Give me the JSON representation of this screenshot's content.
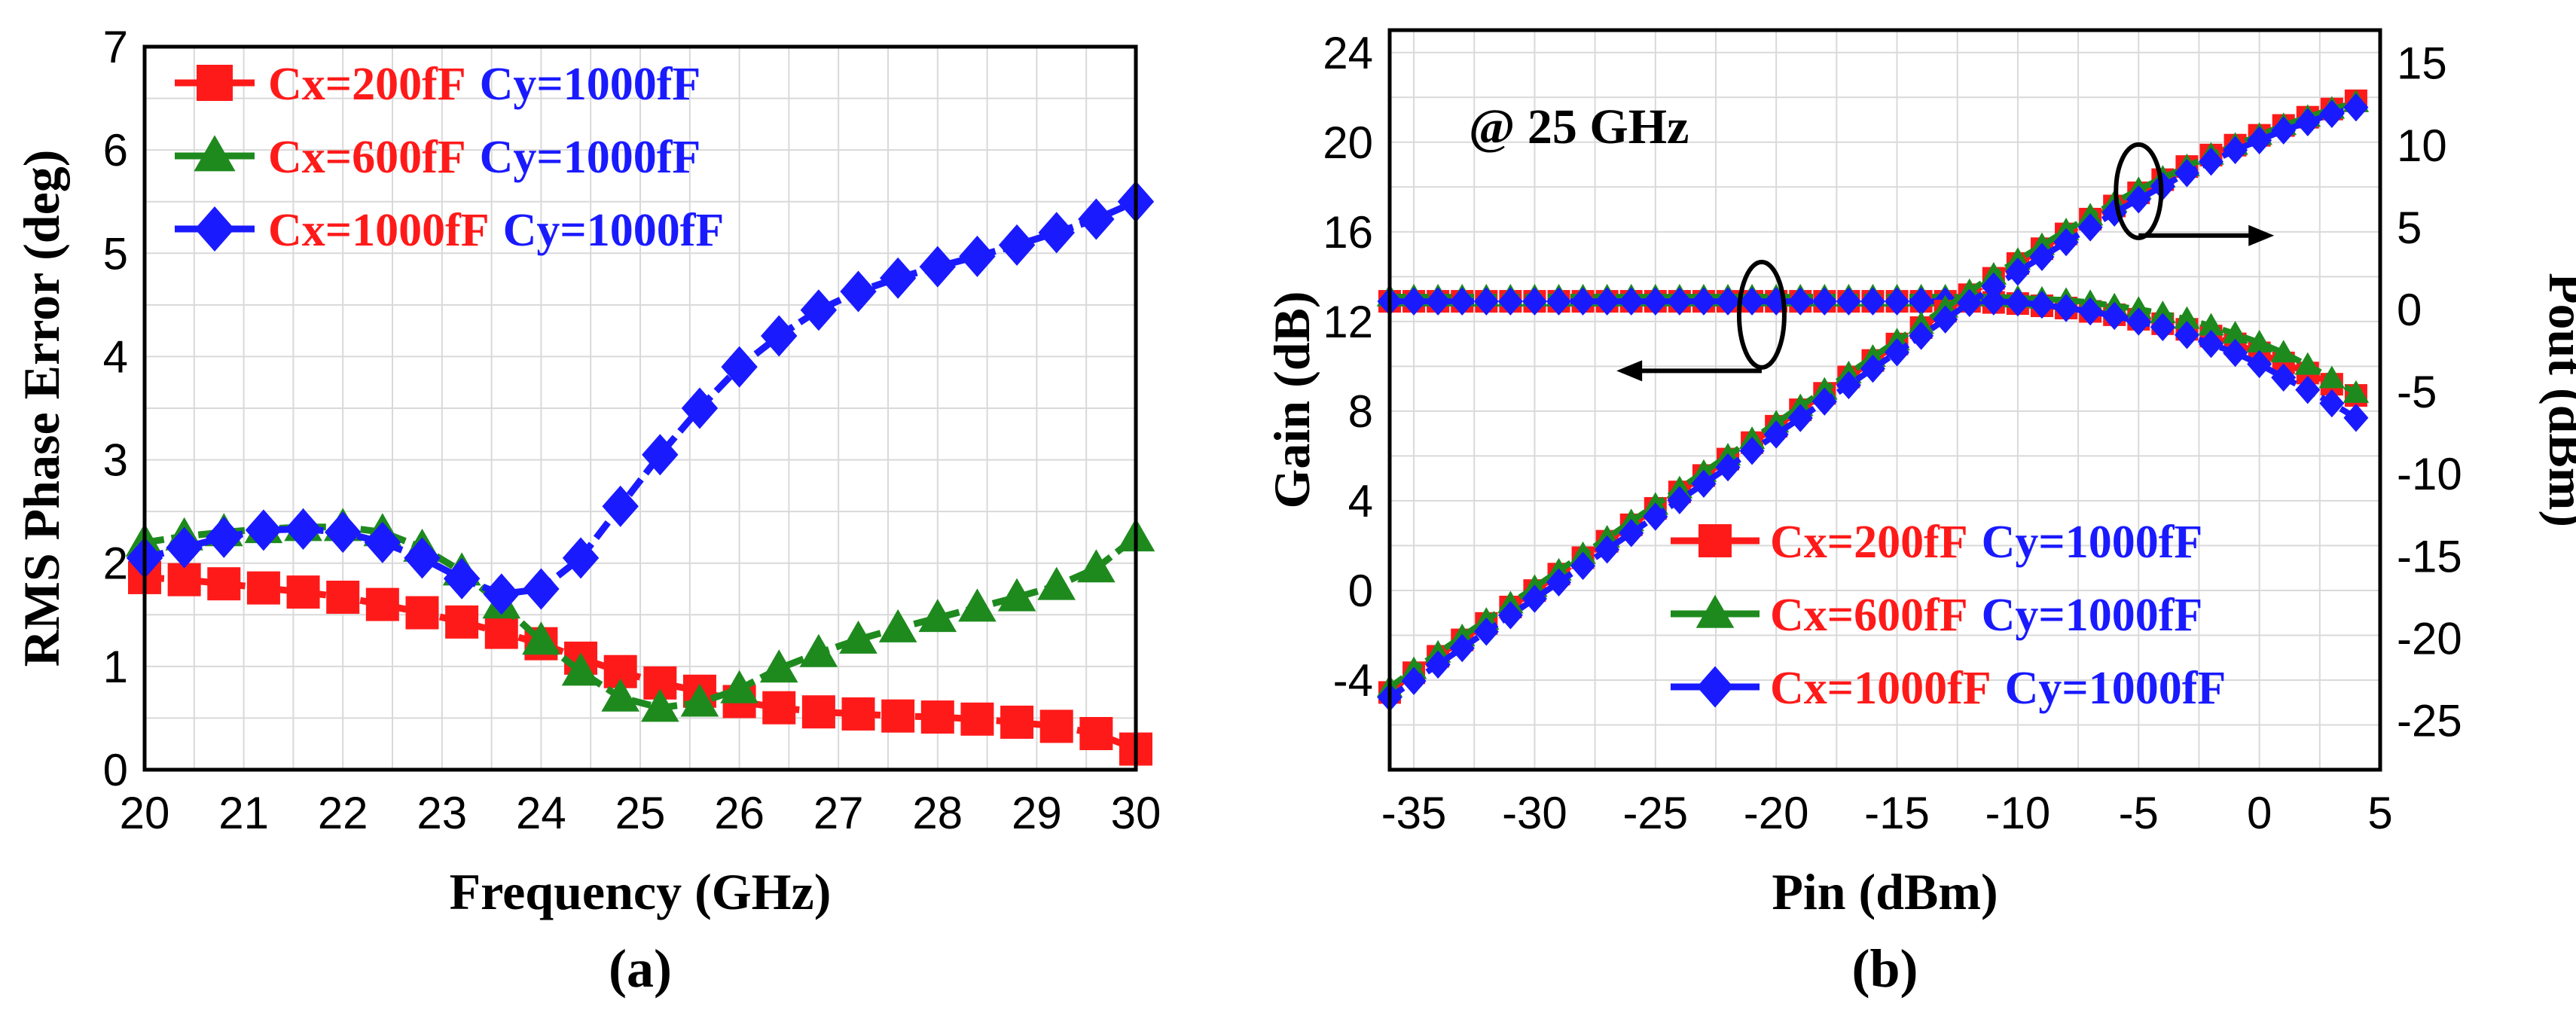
{
  "colors": {
    "Cx200": "#ff1a1a",
    "Cx600": "#1e8a1e",
    "Cx1000": "#1a1aff",
    "cy_label": "#1a1aff"
  },
  "chart_data": [
    {
      "type": "line",
      "panel_label": "(a)",
      "xlabel": "Frequency (GHz)",
      "ylabel": "RMS Phase Error (deg)",
      "xlim": [
        20,
        30
      ],
      "ylim": [
        0,
        7
      ],
      "xticks": [
        "20",
        "21",
        "22",
        "23",
        "24",
        "25",
        "26",
        "27",
        "28",
        "29",
        "30"
      ],
      "yticks": [
        "0",
        "1",
        "2",
        "3",
        "4",
        "5",
        "6",
        "7"
      ],
      "legend_position": "top-left",
      "x": [
        20.0,
        20.4,
        20.8,
        21.2,
        21.6,
        22.0,
        22.4,
        22.8,
        23.2,
        23.6,
        24.0,
        24.4,
        24.8,
        25.2,
        25.6,
        26.0,
        26.4,
        26.8,
        27.2,
        27.6,
        28.0,
        28.4,
        28.8,
        29.2,
        29.6,
        30.0
      ],
      "series": [
        {
          "name": "Cx=200fF",
          "name_b": "Cy=1000fF",
          "color": "#ff1a1a",
          "marker": "square",
          "values": [
            1.86,
            1.84,
            1.8,
            1.76,
            1.72,
            1.67,
            1.6,
            1.52,
            1.43,
            1.33,
            1.22,
            1.08,
            0.95,
            0.84,
            0.76,
            0.66,
            0.6,
            0.56,
            0.54,
            0.52,
            0.51,
            0.49,
            0.46,
            0.42,
            0.35,
            0.2
          ]
        },
        {
          "name": "Cx=600fF",
          "name_b": "Cy=1000fF",
          "color": "#1e8a1e",
          "marker": "triangle",
          "values": [
            2.2,
            2.26,
            2.3,
            2.33,
            2.35,
            2.35,
            2.3,
            2.15,
            1.92,
            1.6,
            1.25,
            0.95,
            0.7,
            0.6,
            0.65,
            0.78,
            0.98,
            1.13,
            1.26,
            1.37,
            1.47,
            1.57,
            1.67,
            1.78,
            1.95,
            2.25
          ]
        },
        {
          "name": "Cx=1000fF",
          "name_b": "Cy=1000fF",
          "color": "#1a1aff",
          "marker": "diamond",
          "values": [
            2.05,
            2.15,
            2.25,
            2.32,
            2.33,
            2.3,
            2.2,
            2.05,
            1.85,
            1.7,
            1.75,
            2.05,
            2.55,
            3.05,
            3.5,
            3.9,
            4.2,
            4.45,
            4.63,
            4.76,
            4.87,
            4.97,
            5.08,
            5.2,
            5.33,
            5.5
          ]
        }
      ]
    },
    {
      "type": "line",
      "panel_label": "(b)",
      "annotation": "@ 25 GHz",
      "xlabel": "Pin (dBm)",
      "ylabel": "Gain (dB)",
      "y2label": "Pout (dBm)",
      "xlim": [
        -36,
        5
      ],
      "ylim": [
        -8,
        25
      ],
      "y2lim": [
        -28,
        17
      ],
      "xticks": [
        "-35",
        "-30",
        "-25",
        "-20",
        "-15",
        "-10",
        "-5",
        "0",
        "5"
      ],
      "yticks": [
        "-4",
        "0",
        "4",
        "8",
        "12",
        "16",
        "20",
        "24"
      ],
      "y2ticks": [
        "-25",
        "-20",
        "-15",
        "-10",
        "-5",
        "0",
        "5",
        "10",
        "15"
      ],
      "legend_position": "bottom-right",
      "x": [
        -36.0,
        -35.0,
        -34.0,
        -33.0,
        -32.0,
        -31.0,
        -30.0,
        -29.0,
        -28.0,
        -27.0,
        -26.0,
        -25.0,
        -24.0,
        -23.0,
        -22.0,
        -21.0,
        -20.0,
        -19.0,
        -18.0,
        -17.0,
        -16.0,
        -15.0,
        -14.0,
        -13.0,
        -12.0,
        -11.0,
        -10.0,
        -9.0,
        -8.0,
        -7.0,
        -6.0,
        -5.0,
        -4.0,
        -3.0,
        -2.0,
        -1.0,
        0.0,
        1.0,
        2.0,
        3.0,
        4.0
      ],
      "series": [
        {
          "name": "Cx=200fF",
          "name_b": "Cy=1000fF",
          "color": "#ff1a1a",
          "marker": "square",
          "axis": "gain",
          "values": [
            12.9,
            12.9,
            12.9,
            12.9,
            12.9,
            12.9,
            12.9,
            12.9,
            12.9,
            12.9,
            12.9,
            12.9,
            12.9,
            12.9,
            12.9,
            12.9,
            12.9,
            12.9,
            12.9,
            12.9,
            12.9,
            12.9,
            12.9,
            12.9,
            12.9,
            12.85,
            12.8,
            12.7,
            12.6,
            12.45,
            12.3,
            12.1,
            11.9,
            11.65,
            11.35,
            11.0,
            10.6,
            10.15,
            9.7,
            9.2,
            8.7
          ]
        },
        {
          "name": "Cx=600fF",
          "name_b": "Cy=1000fF",
          "color": "#1e8a1e",
          "marker": "triangle",
          "axis": "gain",
          "values": [
            13.1,
            13.1,
            13.1,
            13.1,
            13.1,
            13.1,
            13.1,
            13.1,
            13.1,
            13.1,
            13.1,
            13.1,
            13.1,
            13.1,
            13.1,
            13.1,
            13.1,
            13.1,
            13.1,
            13.1,
            13.1,
            13.1,
            13.1,
            13.1,
            13.1,
            13.1,
            13.05,
            13.0,
            12.95,
            12.85,
            12.7,
            12.55,
            12.35,
            12.1,
            11.8,
            11.45,
            11.05,
            10.6,
            10.05,
            9.45,
            8.8
          ]
        },
        {
          "name": "Cx=1000fF",
          "name_b": "Cy=1000fF",
          "color": "#1a1aff",
          "marker": "diamond",
          "axis": "gain",
          "values": [
            12.9,
            12.9,
            12.9,
            12.9,
            12.9,
            12.9,
            12.9,
            12.9,
            12.9,
            12.9,
            12.9,
            12.9,
            12.9,
            12.9,
            12.9,
            12.9,
            12.9,
            12.9,
            12.9,
            12.9,
            12.9,
            12.9,
            12.9,
            12.9,
            12.9,
            12.9,
            12.85,
            12.75,
            12.6,
            12.45,
            12.25,
            12.0,
            11.75,
            11.4,
            11.0,
            10.6,
            10.1,
            9.5,
            8.95,
            8.35,
            7.7
          ]
        },
        {
          "name": "Cx=200fF Pout",
          "color": "#ff1a1a",
          "marker": "square",
          "axis": "pout",
          "values": [
            -23.3,
            -22.1,
            -21.1,
            -20.1,
            -19.1,
            -18.1,
            -17.1,
            -16.1,
            -15.1,
            -14.1,
            -13.1,
            -12.1,
            -11.1,
            -10.1,
            -9.1,
            -8.1,
            -7.1,
            -6.1,
            -5.1,
            -4.1,
            -3.1,
            -2.1,
            -1.1,
            -0.1,
            0.9,
            1.9,
            2.8,
            3.7,
            4.6,
            5.5,
            6.3,
            7.1,
            7.9,
            8.7,
            9.4,
            10.0,
            10.6,
            11.2,
            11.7,
            12.2,
            12.7
          ]
        },
        {
          "name": "Cx=600fF Pout",
          "color": "#1e8a1e",
          "marker": "triangle",
          "axis": "pout",
          "values": [
            -23.0,
            -21.9,
            -20.9,
            -19.9,
            -18.9,
            -17.9,
            -16.9,
            -15.9,
            -14.9,
            -13.9,
            -12.9,
            -11.9,
            -10.9,
            -9.9,
            -8.9,
            -7.9,
            -6.9,
            -5.9,
            -4.9,
            -3.9,
            -2.9,
            -1.9,
            -0.9,
            0.1,
            1.1,
            2.1,
            3.0,
            3.9,
            4.8,
            5.7,
            6.5,
            7.3,
            8.0,
            8.7,
            9.4,
            10.0,
            10.6,
            11.2,
            11.7,
            12.2,
            12.6
          ]
        },
        {
          "name": "Cx=1000fF Pout",
          "color": "#1a1aff",
          "marker": "diamond",
          "axis": "pout",
          "values": [
            -23.6,
            -22.6,
            -21.6,
            -20.6,
            -19.6,
            -18.6,
            -17.6,
            -16.6,
            -15.6,
            -14.6,
            -13.6,
            -12.6,
            -11.6,
            -10.6,
            -9.6,
            -8.6,
            -7.6,
            -6.6,
            -5.6,
            -4.6,
            -3.6,
            -2.6,
            -1.6,
            -0.6,
            0.4,
            1.4,
            2.3,
            3.2,
            4.1,
            5.0,
            5.9,
            6.7,
            7.5,
            8.3,
            9.0,
            9.7,
            10.3,
            10.9,
            11.4,
            11.9,
            12.3
          ]
        }
      ]
    }
  ]
}
